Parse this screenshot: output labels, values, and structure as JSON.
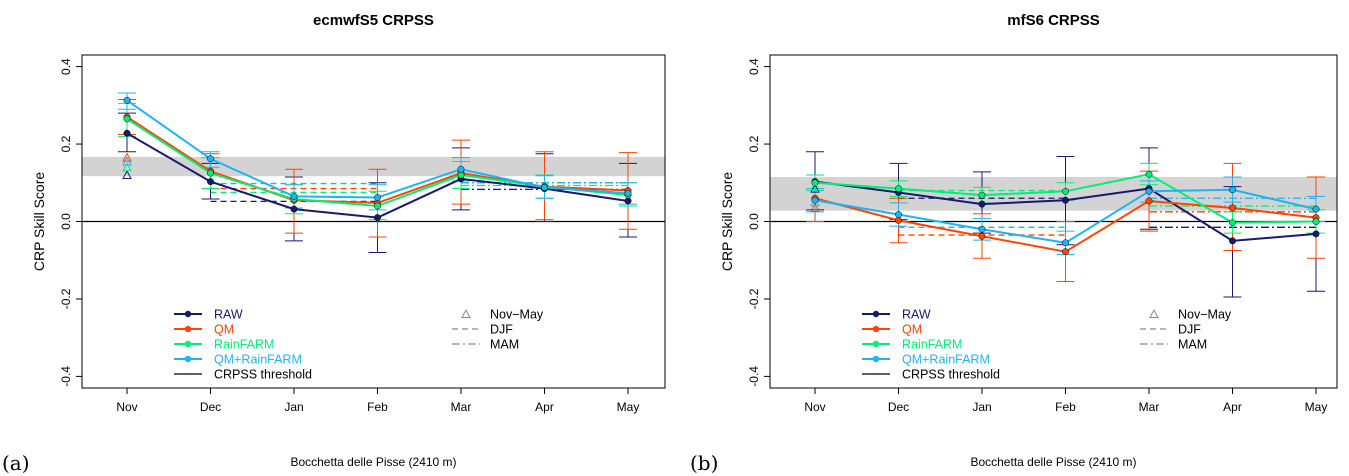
{
  "chart_data": [
    {
      "type": "line",
      "tag": "(a)",
      "title": "ecmwfS5 CRPSS",
      "ylabel": "CRP Skill Score",
      "xlabel": "Bocchetta delle Pisse (2410 m)",
      "categories": [
        "Nov",
        "Dec",
        "Jan",
        "Feb",
        "Mar",
        "Apr",
        "May"
      ],
      "ylim": [
        -0.43,
        0.43
      ],
      "yticks": [
        "-0.4",
        "-0.2",
        "0.0",
        "0.2",
        "0.4"
      ],
      "threshold_band": [
        0.117,
        0.167
      ],
      "series": [
        {
          "name": "RAW",
          "color": "#191970",
          "values": [
            0.228,
            0.103,
            0.032,
            0.01,
            0.11,
            0.085,
            0.053
          ],
          "low": [
            0.18,
            0.058,
            -0.05,
            -0.08,
            0.03,
            0.0,
            -0.04
          ],
          "high": [
            0.28,
            0.15,
            0.115,
            0.1,
            0.19,
            0.175,
            0.15
          ],
          "djf": 0.052,
          "mam": 0.083,
          "novmay": 0.12
        },
        {
          "name": "QM",
          "color": "#FF4500",
          "values": [
            0.27,
            0.13,
            0.055,
            0.048,
            0.125,
            0.09,
            0.08
          ],
          "low": [
            0.225,
            0.085,
            -0.03,
            -0.04,
            0.045,
            0.005,
            -0.02
          ],
          "high": [
            0.315,
            0.175,
            0.135,
            0.135,
            0.21,
            0.18,
            0.178
          ],
          "djf": 0.085,
          "mam": 0.1,
          "novmay": 0.165
        },
        {
          "name": "RainFARM",
          "color": "#00EE76",
          "values": [
            0.265,
            0.125,
            0.058,
            0.04,
            0.12,
            0.09,
            0.068
          ],
          "low": [
            0.22,
            0.085,
            0.02,
            0.005,
            0.085,
            0.06,
            0.04
          ],
          "high": [
            0.305,
            0.165,
            0.095,
            0.078,
            0.155,
            0.12,
            0.1
          ],
          "djf": 0.075,
          "mam": 0.093,
          "novmay": 0.14
        },
        {
          "name": "QM+RainFARM",
          "color": "#1EB4F0",
          "values": [
            0.313,
            0.162,
            0.065,
            0.062,
            0.135,
            0.088,
            0.073
          ],
          "low": [
            0.29,
            0.14,
            0.035,
            0.03,
            0.105,
            0.06,
            0.045
          ],
          "high": [
            0.332,
            0.18,
            0.095,
            0.095,
            0.165,
            0.118,
            0.1
          ],
          "djf": 0.098,
          "mam": 0.1,
          "novmay": 0.155
        }
      ]
    },
    {
      "type": "line",
      "tag": "(b)",
      "title": "mfS6 CRPSS",
      "ylabel": "CRP Skill Score",
      "xlabel": "Bocchetta delle Pisse (2410 m)",
      "categories": [
        "Nov",
        "Dec",
        "Jan",
        "Feb",
        "Mar",
        "Apr",
        "May"
      ],
      "ylim": [
        -0.43,
        0.43
      ],
      "yticks": [
        "-0.4",
        "-0.2",
        "0.0",
        "0.2",
        "0.4"
      ],
      "threshold_band": [
        0.028,
        0.115
      ],
      "series": [
        {
          "name": "RAW",
          "color": "#191970",
          "values": [
            0.103,
            0.075,
            0.045,
            0.055,
            0.085,
            -0.05,
            -0.032
          ],
          "low": [
            0.03,
            0.005,
            -0.03,
            -0.06,
            -0.02,
            -0.195,
            -0.18
          ],
          "high": [
            0.18,
            0.15,
            0.128,
            0.168,
            0.19,
            0.09,
            0.115
          ],
          "djf": 0.06,
          "mam": -0.015,
          "novmay": 0.085
        },
        {
          "name": "QM",
          "color": "#FF4500",
          "values": [
            0.06,
            0.003,
            -0.038,
            -0.078,
            0.053,
            0.035,
            0.01
          ],
          "low": [
            0.0,
            -0.055,
            -0.095,
            -0.155,
            -0.025,
            -0.075,
            -0.095
          ],
          "high": [
            0.12,
            0.06,
            0.02,
            0.0,
            0.13,
            0.15,
            0.115
          ],
          "djf": -0.035,
          "mam": 0.025,
          "novmay": 0.035
        },
        {
          "name": "RainFARM",
          "color": "#00EE76",
          "values": [
            0.1,
            0.085,
            0.068,
            0.078,
            0.122,
            -0.003,
            0.0
          ],
          "low": [
            0.08,
            0.065,
            0.048,
            0.055,
            0.095,
            -0.03,
            -0.03
          ],
          "high": [
            0.12,
            0.105,
            0.088,
            0.1,
            0.15,
            0.025,
            0.03
          ],
          "djf": 0.08,
          "mam": 0.04,
          "novmay": 0.09
        },
        {
          "name": "QM+RainFARM",
          "color": "#1EB4F0",
          "values": [
            0.055,
            0.018,
            -0.02,
            -0.055,
            0.078,
            0.082,
            0.032
          ],
          "low": [
            0.025,
            -0.012,
            -0.048,
            -0.085,
            0.05,
            0.05,
            0.0
          ],
          "high": [
            0.085,
            0.048,
            0.008,
            -0.025,
            0.105,
            0.115,
            0.065
          ],
          "djf": -0.015,
          "mam": 0.06,
          "novmay": 0.05
        }
      ]
    }
  ],
  "legend_extra": {
    "threshold": "CRPSS threshold",
    "novmay": "Nov−May",
    "djf": "DJF",
    "mam": "MAM"
  }
}
